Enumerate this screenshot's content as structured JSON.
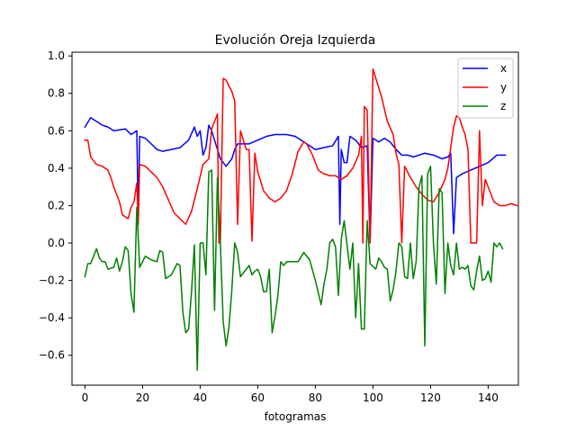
{
  "chart_data": {
    "type": "line",
    "title": "Evolución Oreja Izquierda",
    "xlabel": "fotogramas",
    "ylabel": "",
    "xlim": [
      -4.5,
      150.5
    ],
    "ylim": [
      -0.76,
      1.02
    ],
    "xticks": [
      0,
      20,
      40,
      60,
      80,
      100,
      120,
      140
    ],
    "yticks": [
      -0.6,
      -0.4,
      -0.2,
      0.0,
      0.2,
      0.4,
      0.6,
      0.8,
      1.0
    ],
    "xtick_labels": [
      "0",
      "20",
      "40",
      "60",
      "80",
      "100",
      "120",
      "140"
    ],
    "ytick_labels": [
      "−0.6",
      "−0.4",
      "−0.2",
      "0.0",
      "0.2",
      "0.4",
      "0.6",
      "0.8",
      "1.0"
    ],
    "grid": false,
    "legend_position": "top-right",
    "series": [
      {
        "name": "x",
        "color": "#0000ff",
        "points": [
          [
            0,
            0.62
          ],
          [
            2,
            0.67
          ],
          [
            4,
            0.65
          ],
          [
            6,
            0.63
          ],
          [
            8,
            0.62
          ],
          [
            10,
            0.6
          ],
          [
            14,
            0.61
          ],
          [
            16,
            0.58
          ],
          [
            18,
            0.6
          ],
          [
            18.5,
            0.15
          ],
          [
            19,
            0.57
          ],
          [
            21,
            0.56
          ],
          [
            23,
            0.53
          ],
          [
            25,
            0.5
          ],
          [
            27,
            0.49
          ],
          [
            30,
            0.5
          ],
          [
            33,
            0.51
          ],
          [
            36,
            0.55
          ],
          [
            38,
            0.62
          ],
          [
            39,
            0.57
          ],
          [
            40,
            0.6
          ],
          [
            41,
            0.47
          ],
          [
            42,
            0.51
          ],
          [
            43,
            0.63
          ],
          [
            44,
            0.6
          ],
          [
            45,
            0.55
          ],
          [
            47,
            0.45
          ],
          [
            49,
            0.41
          ],
          [
            51,
            0.45
          ],
          [
            52,
            0.5
          ],
          [
            53,
            0.53
          ],
          [
            57,
            0.53
          ],
          [
            60,
            0.55
          ],
          [
            63,
            0.57
          ],
          [
            66,
            0.58
          ],
          [
            70,
            0.58
          ],
          [
            73,
            0.57
          ],
          [
            76,
            0.54
          ],
          [
            80,
            0.5
          ],
          [
            83,
            0.51
          ],
          [
            86,
            0.52
          ],
          [
            88,
            0.57
          ],
          [
            88.5,
            0.1
          ],
          [
            89,
            0.5
          ],
          [
            90,
            0.43
          ],
          [
            91,
            0.43
          ],
          [
            92,
            0.57
          ],
          [
            94,
            0.55
          ],
          [
            96,
            0.51
          ],
          [
            98,
            0.52
          ],
          [
            99,
            0.0
          ],
          [
            100,
            0.56
          ],
          [
            102,
            0.54
          ],
          [
            104,
            0.56
          ],
          [
            106,
            0.54
          ],
          [
            108,
            0.5
          ],
          [
            110,
            0.47
          ],
          [
            112,
            0.47
          ],
          [
            114,
            0.46
          ],
          [
            116,
            0.47
          ],
          [
            118,
            0.48
          ],
          [
            121,
            0.47
          ],
          [
            124,
            0.45
          ],
          [
            126,
            0.46
          ],
          [
            127,
            0.48
          ],
          [
            128,
            0.05
          ],
          [
            129,
            0.35
          ],
          [
            131,
            0.37
          ],
          [
            134,
            0.39
          ],
          [
            137,
            0.41
          ],
          [
            140,
            0.43
          ],
          [
            143,
            0.47
          ],
          [
            146,
            0.47
          ]
        ]
      },
      {
        "name": "y",
        "color": "#ff0000",
        "points": [
          [
            0,
            0.55
          ],
          [
            1,
            0.55
          ],
          [
            2,
            0.46
          ],
          [
            4,
            0.42
          ],
          [
            6,
            0.41
          ],
          [
            8,
            0.39
          ],
          [
            9,
            0.35
          ],
          [
            10,
            0.3
          ],
          [
            11,
            0.26
          ],
          [
            12,
            0.22
          ],
          [
            13,
            0.15
          ],
          [
            15,
            0.13
          ],
          [
            16,
            0.19
          ],
          [
            17,
            0.22
          ],
          [
            18,
            0.32
          ],
          [
            18.5,
            0.1
          ],
          [
            19,
            0.42
          ],
          [
            21,
            0.41
          ],
          [
            23,
            0.38
          ],
          [
            25,
            0.35
          ],
          [
            27,
            0.3
          ],
          [
            29,
            0.23
          ],
          [
            31,
            0.16
          ],
          [
            33,
            0.13
          ],
          [
            35,
            0.1
          ],
          [
            37,
            0.17
          ],
          [
            39,
            0.29
          ],
          [
            41,
            0.42
          ],
          [
            43,
            0.45
          ],
          [
            44,
            0.61
          ],
          [
            45,
            0.65
          ],
          [
            46,
            0.69
          ],
          [
            46.5,
            0.0
          ],
          [
            47,
            0.0
          ],
          [
            48,
            0.88
          ],
          [
            49,
            0.87
          ],
          [
            51,
            0.81
          ],
          [
            52,
            0.76
          ],
          [
            53,
            0.1
          ],
          [
            54,
            0.6
          ],
          [
            55,
            0.55
          ],
          [
            56,
            0.5
          ],
          [
            57,
            0.5
          ],
          [
            58,
            0.01
          ],
          [
            59,
            0.48
          ],
          [
            60,
            0.38
          ],
          [
            62,
            0.28
          ],
          [
            64,
            0.24
          ],
          [
            66,
            0.22
          ],
          [
            68,
            0.24
          ],
          [
            70,
            0.28
          ],
          [
            72,
            0.37
          ],
          [
            74,
            0.49
          ],
          [
            76,
            0.54
          ],
          [
            77,
            0.53
          ],
          [
            79,
            0.47
          ],
          [
            81,
            0.39
          ],
          [
            83,
            0.37
          ],
          [
            85,
            0.36
          ],
          [
            87,
            0.36
          ],
          [
            89,
            0.34
          ],
          [
            91,
            0.36
          ],
          [
            93,
            0.4
          ],
          [
            95,
            0.47
          ],
          [
            96,
            0.57
          ],
          [
            96.5,
            0.0
          ],
          [
            97,
            0.73
          ],
          [
            98,
            0.71
          ],
          [
            99,
            0.0
          ],
          [
            100,
            0.93
          ],
          [
            101,
            0.88
          ],
          [
            103,
            0.78
          ],
          [
            105,
            0.65
          ],
          [
            107,
            0.58
          ],
          [
            108,
            0.48
          ],
          [
            109,
            0.42
          ],
          [
            110,
            0.0
          ],
          [
            111,
            0.41
          ],
          [
            113,
            0.35
          ],
          [
            115,
            0.3
          ],
          [
            117,
            0.26
          ],
          [
            119,
            0.23
          ],
          [
            121,
            0.22
          ],
          [
            123,
            0.27
          ],
          [
            125,
            0.34
          ],
          [
            126,
            0.4
          ],
          [
            128,
            0.62
          ],
          [
            129,
            0.68
          ],
          [
            130,
            0.67
          ],
          [
            131,
            0.62
          ],
          [
            132,
            0.58
          ],
          [
            133,
            0.5
          ],
          [
            134,
            0.0
          ],
          [
            136,
            0.0
          ],
          [
            137,
            0.6
          ],
          [
            138,
            0.2
          ],
          [
            139,
            0.34
          ],
          [
            140,
            0.3
          ],
          [
            142,
            0.22
          ],
          [
            144,
            0.2
          ],
          [
            146,
            0.2
          ],
          [
            148,
            0.21
          ],
          [
            150,
            0.2
          ]
        ]
      },
      {
        "name": "z",
        "color": "#008000",
        "points": [
          [
            0,
            -0.18
          ],
          [
            1,
            -0.11
          ],
          [
            2,
            -0.11
          ],
          [
            3,
            -0.07
          ],
          [
            4,
            -0.03
          ],
          [
            5,
            -0.08
          ],
          [
            6,
            -0.1
          ],
          [
            7,
            -0.1
          ],
          [
            8,
            -0.14
          ],
          [
            10,
            -0.13
          ],
          [
            11,
            -0.08
          ],
          [
            12,
            -0.15
          ],
          [
            13,
            -0.1
          ],
          [
            14,
            -0.02
          ],
          [
            15,
            -0.04
          ],
          [
            16,
            -0.27
          ],
          [
            17,
            -0.37
          ],
          [
            18,
            0.19
          ],
          [
            19,
            -0.13
          ],
          [
            21,
            -0.07
          ],
          [
            23,
            -0.09
          ],
          [
            25,
            -0.1
          ],
          [
            26,
            -0.04
          ],
          [
            27,
            -0.05
          ],
          [
            28,
            -0.19
          ],
          [
            30,
            -0.17
          ],
          [
            32,
            -0.11
          ],
          [
            33,
            -0.12
          ],
          [
            34,
            -0.37
          ],
          [
            35,
            -0.48
          ],
          [
            36,
            -0.46
          ],
          [
            37,
            -0.26
          ],
          [
            38,
            -0.01
          ],
          [
            39,
            -0.68
          ],
          [
            40,
            0.0
          ],
          [
            41,
            0.0
          ],
          [
            42,
            -0.17
          ],
          [
            43,
            0.38
          ],
          [
            44,
            0.39
          ],
          [
            45,
            -0.36
          ],
          [
            46,
            0.35
          ],
          [
            47,
            0.0
          ],
          [
            48,
            -0.42
          ],
          [
            49,
            -0.55
          ],
          [
            50,
            -0.45
          ],
          [
            51,
            -0.25
          ],
          [
            52,
            0.0
          ],
          [
            53,
            -0.05
          ],
          [
            54,
            -0.18
          ],
          [
            55,
            -0.16
          ],
          [
            57,
            -0.12
          ],
          [
            58,
            -0.17
          ],
          [
            59,
            -0.15
          ],
          [
            60,
            -0.14
          ],
          [
            61,
            -0.18
          ],
          [
            62,
            -0.26
          ],
          [
            63,
            -0.26
          ],
          [
            64,
            -0.14
          ],
          [
            65,
            -0.48
          ],
          [
            66,
            -0.39
          ],
          [
            67,
            -0.28
          ],
          [
            68,
            -0.1
          ],
          [
            69,
            -0.12
          ],
          [
            70,
            -0.1
          ],
          [
            72,
            -0.1
          ],
          [
            74,
            -0.1
          ],
          [
            76,
            -0.05
          ],
          [
            78,
            -0.09
          ],
          [
            80,
            -0.2
          ],
          [
            82,
            -0.33
          ],
          [
            83,
            -0.22
          ],
          [
            84,
            -0.14
          ],
          [
            85,
            0.0
          ],
          [
            86,
            0.02
          ],
          [
            87,
            -0.02
          ],
          [
            88,
            -0.28
          ],
          [
            89,
            0.02
          ],
          [
            90,
            0.12
          ],
          [
            91,
            -0.01
          ],
          [
            92,
            -0.14
          ],
          [
            93,
            0.0
          ],
          [
            94,
            -0.4
          ],
          [
            95,
            -0.11
          ],
          [
            96,
            -0.46
          ],
          [
            97,
            -0.46
          ],
          [
            98,
            0.12
          ],
          [
            99,
            -0.11
          ],
          [
            101,
            -0.14
          ],
          [
            102,
            -0.08
          ],
          [
            103,
            -0.1
          ],
          [
            104,
            -0.13
          ],
          [
            105,
            -0.14
          ],
          [
            106,
            -0.31
          ],
          [
            107,
            -0.25
          ],
          [
            108,
            -0.15
          ],
          [
            109,
            0.0
          ],
          [
            110,
            -0.02
          ],
          [
            111,
            -0.18
          ],
          [
            112,
            -0.19
          ],
          [
            113,
            0.0
          ],
          [
            114,
            -0.19
          ],
          [
            115,
            -0.1
          ],
          [
            116,
            0.3
          ],
          [
            117,
            0.36
          ],
          [
            118,
            -0.55
          ],
          [
            119,
            0.37
          ],
          [
            120,
            0.41
          ],
          [
            121,
            0.0
          ],
          [
            122,
            -0.22
          ],
          [
            123,
            0.29
          ],
          [
            124,
            0.27
          ],
          [
            125,
            -0.27
          ],
          [
            126,
            0.0
          ],
          [
            127,
            -0.12
          ],
          [
            128,
            -0.17
          ],
          [
            129,
            0.0
          ],
          [
            130,
            -0.14
          ],
          [
            131,
            -0.13
          ],
          [
            132,
            -0.14
          ],
          [
            133,
            -0.12
          ],
          [
            134,
            -0.23
          ],
          [
            135,
            -0.25
          ],
          [
            136,
            -0.15
          ],
          [
            137,
            -0.07
          ],
          [
            138,
            -0.2
          ],
          [
            139,
            -0.19
          ],
          [
            140,
            -0.15
          ],
          [
            141,
            -0.21
          ],
          [
            142,
            0.0
          ],
          [
            143,
            -0.02
          ],
          [
            144,
            0.0
          ],
          [
            145,
            -0.03
          ]
        ]
      }
    ]
  }
}
